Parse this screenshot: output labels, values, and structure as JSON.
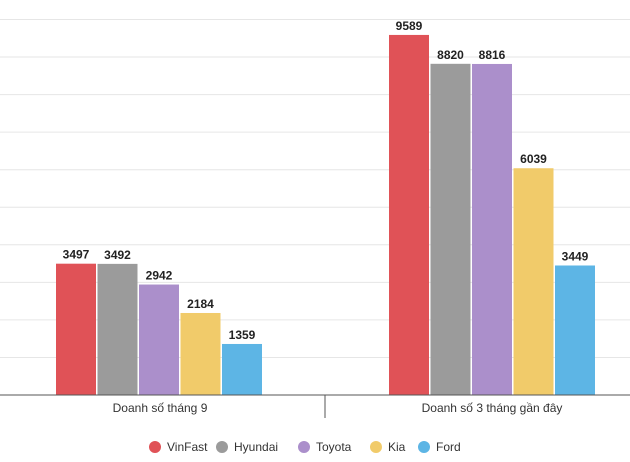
{
  "chart_data": {
    "type": "bar",
    "title": "",
    "xlabel": "",
    "ylabel": "",
    "ylim": [
      0,
      10000
    ],
    "grid": true,
    "legend_position": "bottom",
    "categories": [
      "Doanh số tháng 9",
      "Doanh số 3 tháng gần đây"
    ],
    "series": [
      {
        "name": "VinFast",
        "color": "#e05257",
        "values": [
          3497,
          9589
        ]
      },
      {
        "name": "Hyundai",
        "color": "#9b9b9b",
        "values": [
          3492,
          8820
        ]
      },
      {
        "name": "Toyota",
        "color": "#ab8fcb",
        "values": [
          2942,
          8816
        ]
      },
      {
        "name": "Kia",
        "color": "#f1cb6a",
        "values": [
          2184,
          6039
        ]
      },
      {
        "name": "Ford",
        "color": "#5db5e5",
        "values": [
          1359,
          3449
        ]
      }
    ]
  }
}
